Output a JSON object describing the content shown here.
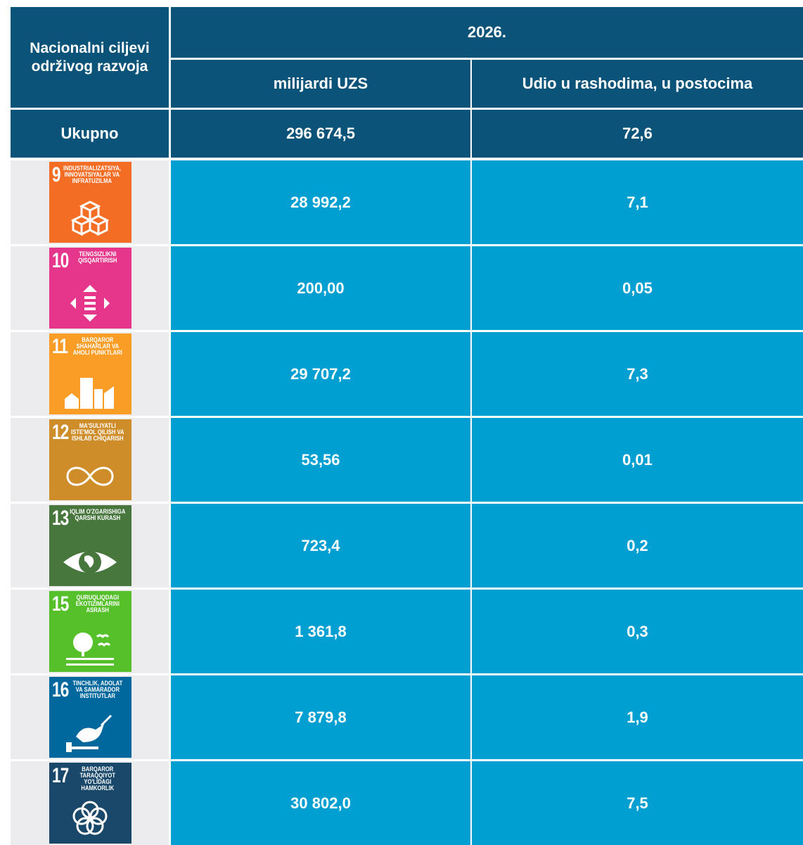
{
  "header": {
    "goal_column": "Nacionalni ciljevi održivog razvoja",
    "year": "2026.",
    "columns": [
      "milijardi UZS",
      "Udio u rashodima, u postocima"
    ]
  },
  "total": {
    "label": "Ukupno",
    "values": [
      "296 674,5",
      "72,6"
    ]
  },
  "rows": [
    {
      "goal_number": "9",
      "goal_label": "INDUSTRIALIZATSIYA, INNOVATSIYALAR VA INFRATUZILMA",
      "color": "#f36d25",
      "values": [
        "28 992,2",
        "7,1"
      ]
    },
    {
      "goal_number": "10",
      "goal_label": "TENGSIZLIKNI QISQARTIRISH",
      "color": "#e5368c",
      "values": [
        "200,00",
        "0,05"
      ]
    },
    {
      "goal_number": "11",
      "goal_label": "BARQAROR SHAHARLAR VA AHOLI PUNKTLARI",
      "color": "#f99d26",
      "values": [
        "29 707,2",
        "7,3"
      ]
    },
    {
      "goal_number": "12",
      "goal_label": "MA'SULIYATLI ISTE'MOL QILISH VA ISHLAB CHIQARISH",
      "color": "#cf8d2a",
      "values": [
        "53,56",
        "0,01"
      ]
    },
    {
      "goal_number": "13",
      "goal_label": "IQLIM O'ZGARISHIGA QARSHI KURASH",
      "color": "#48773e",
      "values": [
        "723,4",
        "0,2"
      ]
    },
    {
      "goal_number": "15",
      "goal_label": "QURUQLIQDAGI EKOTIZIMLARINI ASRASH",
      "color": "#56c02b",
      "values": [
        "1 361,8",
        "0,3"
      ]
    },
    {
      "goal_number": "16",
      "goal_label": "TINCHLIK, ADOLAT VA SAMARADOR INSTITUTLAR",
      "color": "#00689d",
      "values": [
        "7 879,8",
        "1,9"
      ]
    },
    {
      "goal_number": "17",
      "goal_label": "BARQAROR TARAQQIYOT YO'LIDAGI HAMKORLIK",
      "color": "#19486a",
      "values": [
        "30 802,0",
        "7,5"
      ]
    }
  ]
}
